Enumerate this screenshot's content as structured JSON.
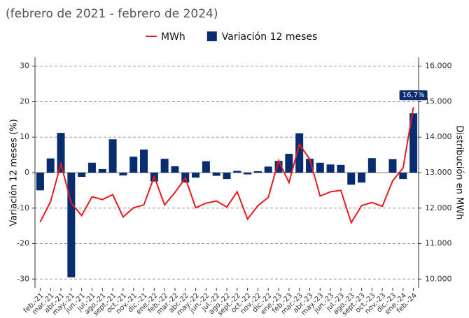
{
  "chart_data": {
    "type": "bar-line",
    "subtitle": "(febrero de 2021 - febrero de 2024)",
    "ylabel": "Variación 12 meses (%)",
    "y2label": "Distribución en MWh",
    "categories": [
      "feb.-21",
      "mar.-21",
      "abr.-21",
      "may.-21",
      "jun.-21",
      "jul.-21",
      "ago.-21",
      "sept.-21",
      "oct.-21",
      "nov.-21",
      "dic.-21",
      "ene.-22",
      "feb.-22",
      "mar.-22",
      "abr.-22",
      "may.-22",
      "jun.-22",
      "jul.-22",
      "ago.-22",
      "sept.-22",
      "oct.-22",
      "nov.-22",
      "dic.-22",
      "ene.-23",
      "feb.-23",
      "mar.-23",
      "abr.-23",
      "may.-23",
      "jun.-23",
      "jul.-23",
      "ago.-23",
      "sept.-23",
      "oct.-23",
      "nov.-23",
      "dic.-23",
      "ene.-24",
      "feb.-24"
    ],
    "series": [
      {
        "name": "MWh",
        "type": "line",
        "axis": "y2",
        "color": "#e8191f",
        "values": [
          11610,
          12180,
          13250,
          12140,
          11790,
          12320,
          12240,
          12380,
          11750,
          12010,
          12090,
          12890,
          12090,
          12440,
          12850,
          12010,
          12140,
          12200,
          12030,
          12460,
          11690,
          12070,
          12300,
          13340,
          12720,
          13800,
          13380,
          12340,
          12460,
          12500,
          11590,
          12070,
          12160,
          12050,
          12770,
          13130,
          14840
        ]
      },
      {
        "name": "Variación 12 meses",
        "type": "bar",
        "color": "#082d6e",
        "values": [
          -5,
          4,
          11.2,
          -29.5,
          -1.2,
          2.8,
          1,
          9.4,
          -0.8,
          4.5,
          6.5,
          -2.5,
          3.9,
          1.8,
          -2.8,
          -1.4,
          3.2,
          -0.9,
          -1.8,
          0.5,
          -0.5,
          0.4,
          1.7,
          3.3,
          5.3,
          11.1,
          3.9,
          2.8,
          2.3,
          2.2,
          -3.4,
          -2.8,
          4.1,
          0,
          3.8,
          -1.8,
          16.7
        ],
        "value_labels": [
          null,
          null,
          null,
          null,
          null,
          null,
          null,
          null,
          null,
          null,
          null,
          null,
          null,
          null,
          null,
          null,
          null,
          null,
          null,
          null,
          null,
          null,
          null,
          null,
          null,
          null,
          null,
          null,
          null,
          null,
          null,
          null,
          null,
          null,
          null,
          null,
          "16,7%"
        ]
      }
    ],
    "ylim": [
      -32.5,
      32.5
    ],
    "yticks": [
      -30,
      -20,
      -10,
      0,
      10,
      20,
      30
    ],
    "y2lim": [
      9750,
      16250
    ],
    "y2ticks": [
      {
        "value": 10000,
        "label": "10.000"
      },
      {
        "value": 11000,
        "label": "11.000"
      },
      {
        "value": 12000,
        "label": "12.000"
      },
      {
        "value": 13000,
        "label": "13.000"
      },
      {
        "value": 14000,
        "label": "14.000"
      },
      {
        "value": 15000,
        "label": "15.000"
      },
      {
        "value": 16000,
        "label": "16.000"
      }
    ],
    "grid": true,
    "legend": "top"
  }
}
